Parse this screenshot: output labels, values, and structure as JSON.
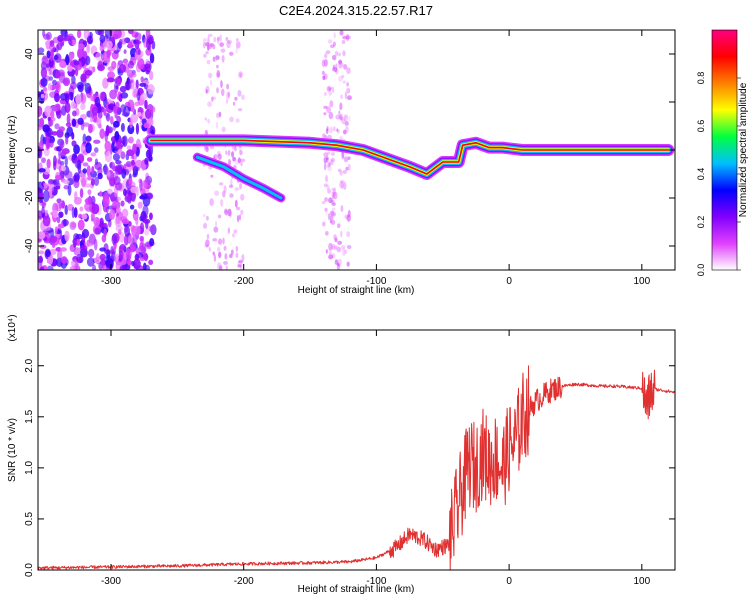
{
  "title": "C2E4.2024.315.22.57.R17",
  "chart_data": [
    {
      "type": "heatmap",
      "xlabel": "Height of straight line (km)",
      "ylabel": "Frequency (Hz)",
      "xlim": [
        -355,
        125
      ],
      "ylim": [
        -50,
        50
      ],
      "x_ticks": [
        -300,
        -200,
        -100,
        0,
        100
      ],
      "y_ticks": [
        -40,
        -20,
        0,
        20,
        40
      ],
      "colorbar": {
        "label": "Normalized spectral amplitude",
        "range": [
          0,
          1
        ],
        "ticks": [
          "0.0",
          "0.2",
          "0.4",
          "0.6",
          "0.8"
        ],
        "tick_values": [
          0,
          0.2,
          0.4,
          0.6,
          0.8
        ],
        "colors": [
          "#ffffff",
          "#e040ff",
          "#8000ff",
          "#0000ff",
          "#00c0ff",
          "#00ff40",
          "#ffff00",
          "#ff8000",
          "#ff0000",
          "#ff0080"
        ]
      },
      "features": [
        {
          "kind": "main_band",
          "points": [
            [
              -270,
              4
            ],
            [
              -250,
              4
            ],
            [
              -200,
              4
            ],
            [
              -150,
              3
            ],
            [
              -130,
              2
            ],
            [
              -110,
              0
            ],
            [
              -90,
              -4
            ],
            [
              -75,
              -7
            ],
            [
              -62,
              -10
            ],
            [
              -50,
              -5
            ],
            [
              -38,
              -5
            ],
            [
              -35,
              2
            ],
            [
              -25,
              3
            ],
            [
              -15,
              1
            ],
            [
              -5,
              1
            ],
            [
              10,
              0
            ],
            [
              120,
              0
            ]
          ]
        },
        {
          "kind": "branch",
          "points": [
            [
              -235,
              -3
            ],
            [
              -215,
              -7
            ],
            [
              -200,
              -12
            ],
            [
              -185,
              -16
            ],
            [
              -172,
              -20
            ]
          ]
        },
        {
          "kind": "noise_region",
          "xlim": [
            -355,
            -268
          ]
        },
        {
          "kind": "noise_band",
          "x": -215,
          "width": 30
        },
        {
          "kind": "noise_band",
          "x": -130,
          "width": 20
        }
      ]
    },
    {
      "type": "line",
      "xlabel": "Height of straight line (km)",
      "ylabel": "SNR (10 * v/v)",
      "exponent_label": "(x10⁴)",
      "xlim": [
        -355,
        125
      ],
      "ylim": [
        0,
        2.35
      ],
      "x_ticks": [
        -300,
        -200,
        -100,
        0,
        100
      ],
      "y_ticks": [
        "0.0",
        "0.5",
        "1.0",
        "1.5",
        "2.0"
      ],
      "y_tick_values": [
        0,
        0.5,
        1.0,
        1.5,
        2.0
      ],
      "color": "#e03030",
      "x": [
        -355,
        -300,
        -250,
        -200,
        -150,
        -120,
        -100,
        -85,
        -75,
        -65,
        -55,
        -45,
        -40,
        -35,
        -30,
        -25,
        -20,
        -15,
        -10,
        -5,
        0,
        5,
        10,
        20,
        30,
        40,
        50,
        60,
        70,
        80,
        90,
        100,
        104,
        106,
        110,
        125
      ],
      "y": [
        0.02,
        0.03,
        0.04,
        0.06,
        0.07,
        0.08,
        0.12,
        0.22,
        0.35,
        0.3,
        0.2,
        0.25,
        0.55,
        0.8,
        1.05,
        1.0,
        1.15,
        1.05,
        1.1,
        1.0,
        1.2,
        1.25,
        1.5,
        1.65,
        1.75,
        1.8,
        1.82,
        1.81,
        1.8,
        1.8,
        1.79,
        1.78,
        1.6,
        1.72,
        1.77,
        1.74
      ]
    }
  ]
}
